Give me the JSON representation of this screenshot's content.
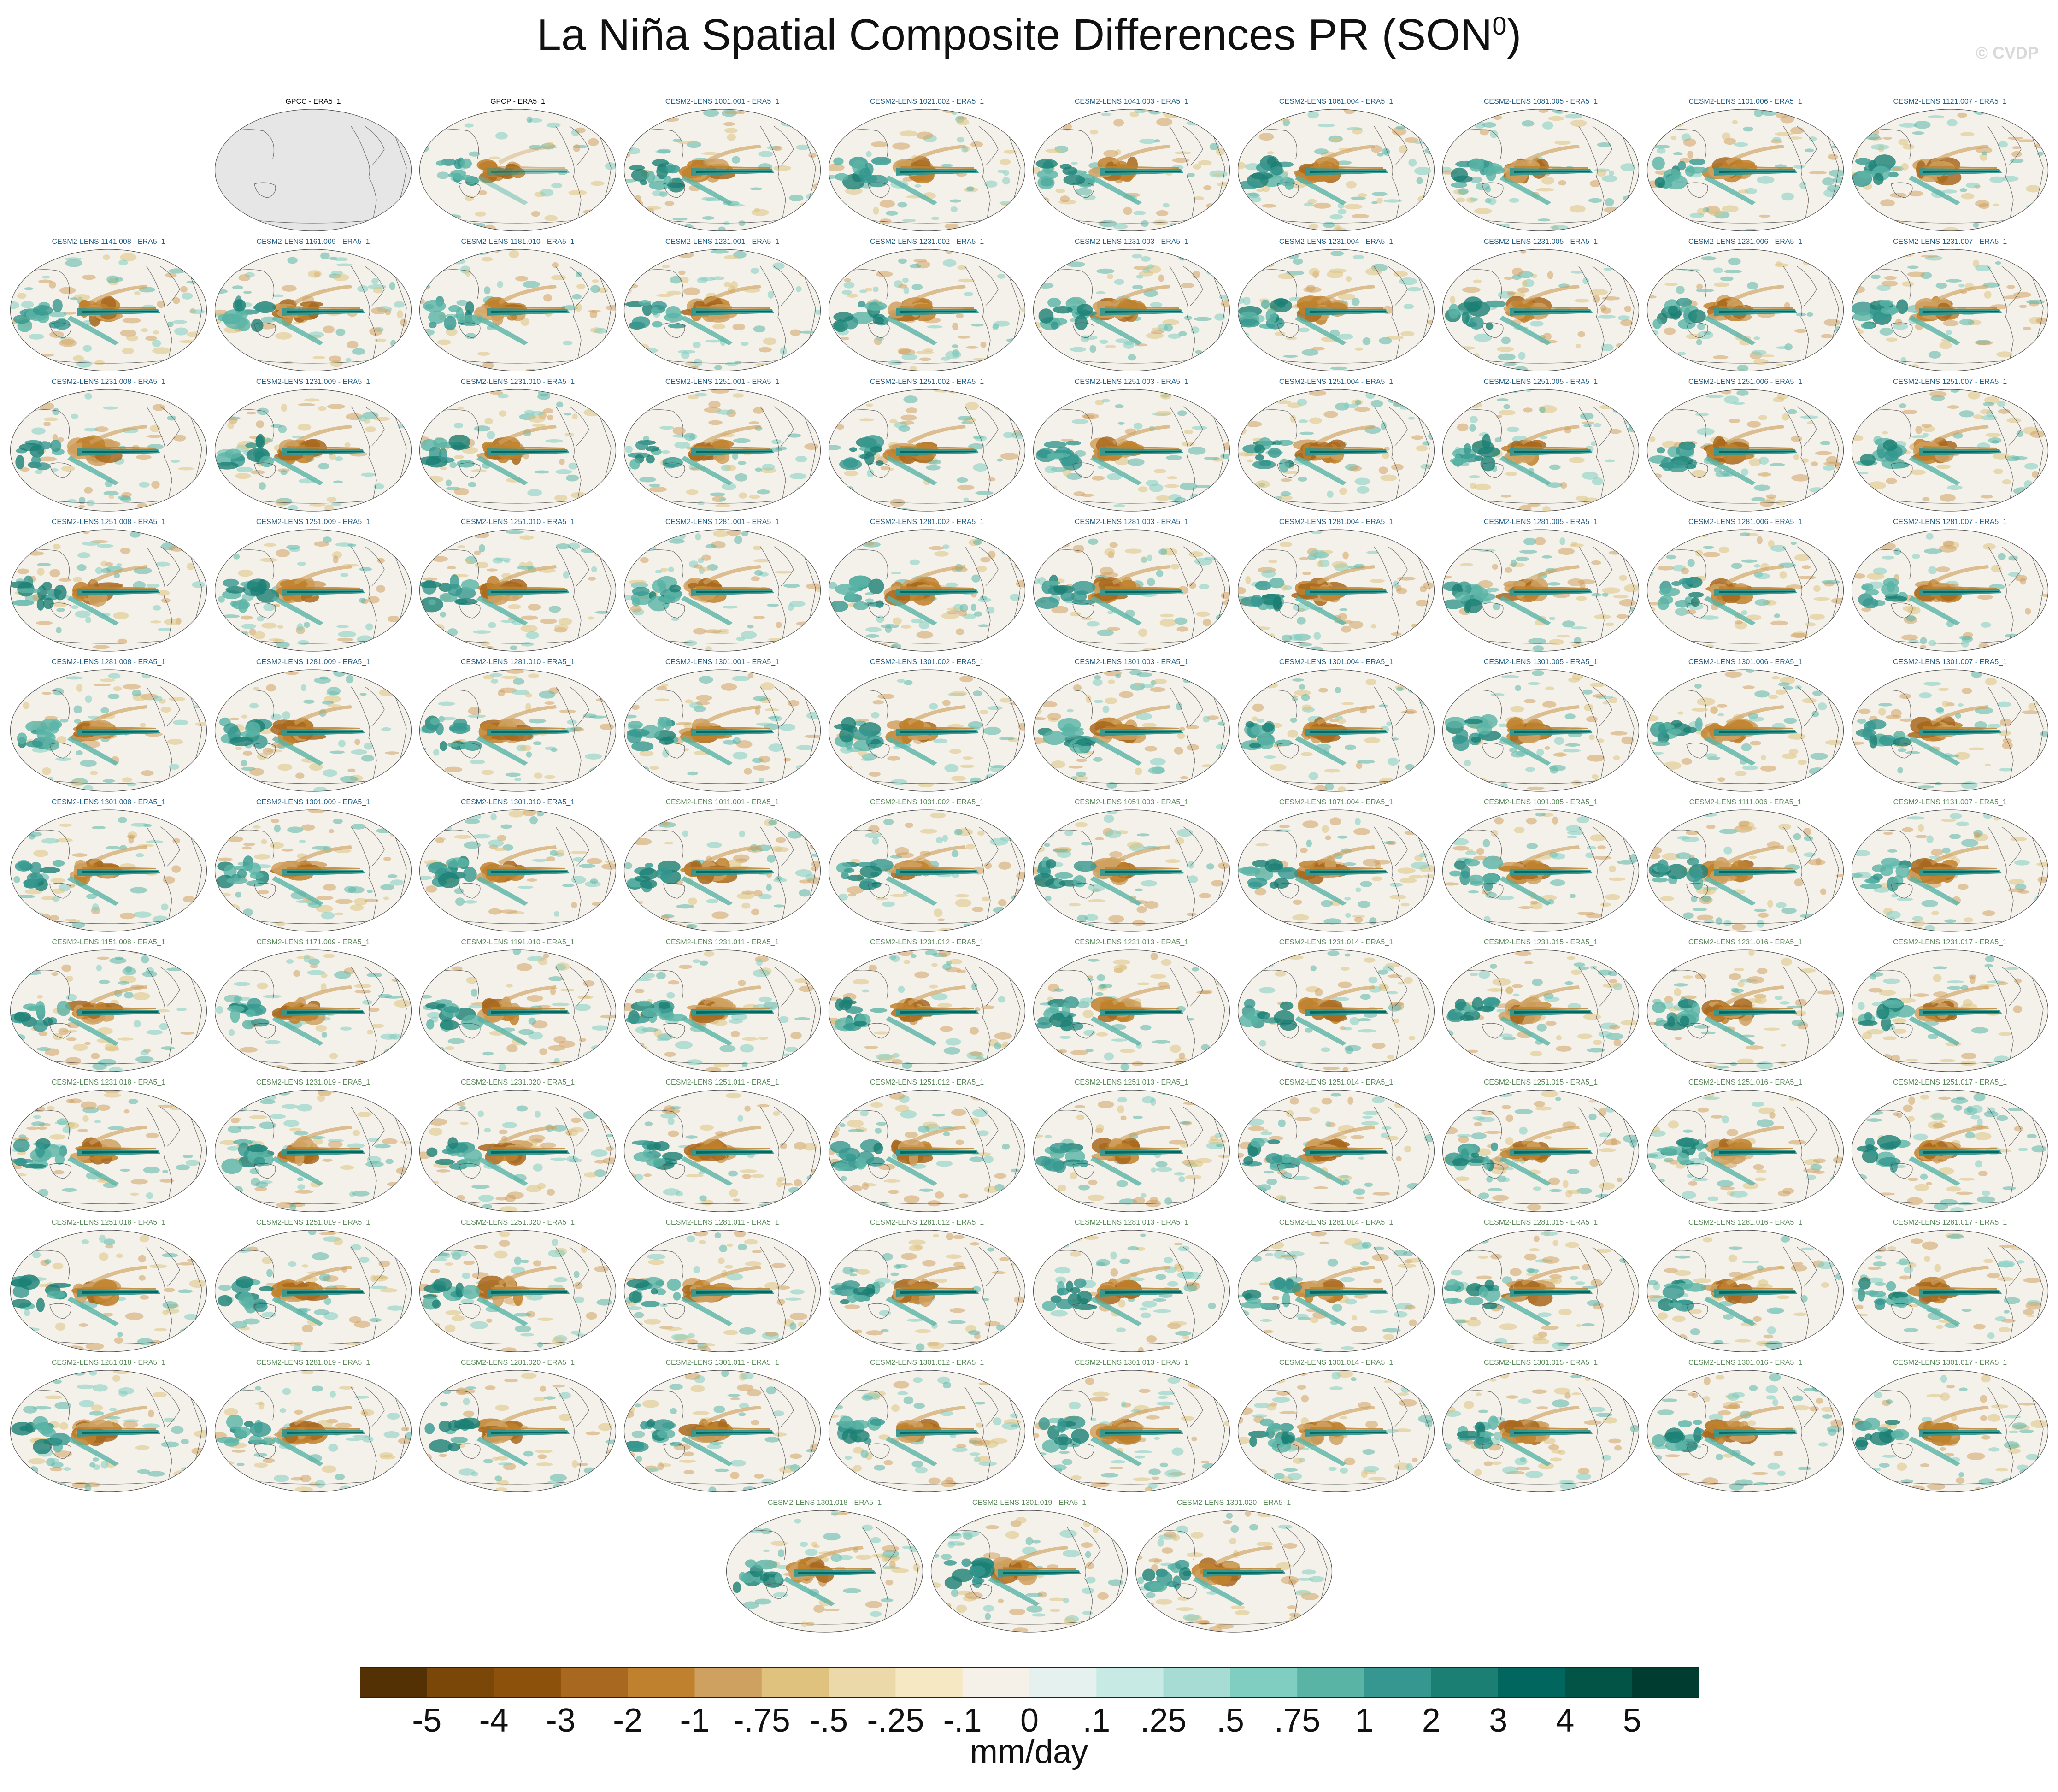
{
  "title": "La Niña Spatial Composite Differences PR (SON",
  "title_sup": "0",
  "title_close": ")",
  "watermark": "© CVDP",
  "units": "mm/day",
  "colors": {
    "title_obs": "#000000",
    "title_model_a": "#1f5f8b",
    "title_model_b": "#5a8a5a",
    "ocean_bg": "#f3f1ea",
    "land_mask": "#e6e6e6",
    "coast": "#555555"
  },
  "colorbar": {
    "labels": [
      "-5",
      "-4",
      "-3",
      "-2",
      "-1",
      "-.75",
      "-.5",
      "-.25",
      "-.1",
      "0",
      ".1",
      ".25",
      ".5",
      ".75",
      "1",
      "2",
      "3",
      "4",
      "5"
    ],
    "colors": [
      "#543005",
      "#7a4708",
      "#8c510a",
      "#a8681f",
      "#bf812d",
      "#cfa160",
      "#dfc27d",
      "#ecd9a9",
      "#f6e8c3",
      "#f5f1e8",
      "#e4f1ef",
      "#c7eae5",
      "#a6dcd3",
      "#80cdc1",
      "#5ab4a6",
      "#35978f",
      "#1c7f74",
      "#01665e",
      "#015446",
      "#003c30"
    ]
  },
  "panels": [
    {
      "label": "GPCC - ERA5_1",
      "kind": "obs-empty"
    },
    {
      "label": "GPCP - ERA5_1",
      "kind": "obs"
    },
    {
      "label": "CESM2-LENS 1001.001 - ERA5_1",
      "kind": "a"
    },
    {
      "label": "CESM2-LENS 1021.002 - ERA5_1",
      "kind": "a"
    },
    {
      "label": "CESM2-LENS 1041.003 - ERA5_1",
      "kind": "a"
    },
    {
      "label": "CESM2-LENS 1061.004 - ERA5_1",
      "kind": "a"
    },
    {
      "label": "CESM2-LENS 1081.005 - ERA5_1",
      "kind": "a"
    },
    {
      "label": "CESM2-LENS 1101.006 - ERA5_1",
      "kind": "a"
    },
    {
      "label": "CESM2-LENS 1121.007 - ERA5_1",
      "kind": "a"
    },
    {
      "label": "CESM2-LENS 1141.008 - ERA5_1",
      "kind": "a"
    },
    {
      "label": "CESM2-LENS 1161.009 - ERA5_1",
      "kind": "a"
    },
    {
      "label": "CESM2-LENS 1181.010 - ERA5_1",
      "kind": "a"
    },
    {
      "label": "CESM2-LENS 1231.001 - ERA5_1",
      "kind": "a"
    },
    {
      "label": "CESM2-LENS 1231.002 - ERA5_1",
      "kind": "a"
    },
    {
      "label": "CESM2-LENS 1231.003 - ERA5_1",
      "kind": "a"
    },
    {
      "label": "CESM2-LENS 1231.004 - ERA5_1",
      "kind": "a"
    },
    {
      "label": "CESM2-LENS 1231.005 - ERA5_1",
      "kind": "a"
    },
    {
      "label": "CESM2-LENS 1231.006 - ERA5_1",
      "kind": "a"
    },
    {
      "label": "CESM2-LENS 1231.007 - ERA5_1",
      "kind": "a"
    },
    {
      "label": "CESM2-LENS 1231.008 - ERA5_1",
      "kind": "a"
    },
    {
      "label": "CESM2-LENS 1231.009 - ERA5_1",
      "kind": "a"
    },
    {
      "label": "CESM2-LENS 1231.010 - ERA5_1",
      "kind": "a"
    },
    {
      "label": "CESM2-LENS 1251.001 - ERA5_1",
      "kind": "a"
    },
    {
      "label": "CESM2-LENS 1251.002 - ERA5_1",
      "kind": "a"
    },
    {
      "label": "CESM2-LENS 1251.003 - ERA5_1",
      "kind": "a"
    },
    {
      "label": "CESM2-LENS 1251.004 - ERA5_1",
      "kind": "a"
    },
    {
      "label": "CESM2-LENS 1251.005 - ERA5_1",
      "kind": "a"
    },
    {
      "label": "CESM2-LENS 1251.006 - ERA5_1",
      "kind": "a"
    },
    {
      "label": "CESM2-LENS 1251.007 - ERA5_1",
      "kind": "a"
    },
    {
      "label": "CESM2-LENS 1251.008 - ERA5_1",
      "kind": "a"
    },
    {
      "label": "CESM2-LENS 1251.009 - ERA5_1",
      "kind": "a"
    },
    {
      "label": "CESM2-LENS 1251.010 - ERA5_1",
      "kind": "a"
    },
    {
      "label": "CESM2-LENS 1281.001 - ERA5_1",
      "kind": "a"
    },
    {
      "label": "CESM2-LENS 1281.002 - ERA5_1",
      "kind": "a"
    },
    {
      "label": "CESM2-LENS 1281.003 - ERA5_1",
      "kind": "a"
    },
    {
      "label": "CESM2-LENS 1281.004 - ERA5_1",
      "kind": "a"
    },
    {
      "label": "CESM2-LENS 1281.005 - ERA5_1",
      "kind": "a"
    },
    {
      "label": "CESM2-LENS 1281.006 - ERA5_1",
      "kind": "a"
    },
    {
      "label": "CESM2-LENS 1281.007 - ERA5_1",
      "kind": "a"
    },
    {
      "label": "CESM2-LENS 1281.008 - ERA5_1",
      "kind": "a"
    },
    {
      "label": "CESM2-LENS 1281.009 - ERA5_1",
      "kind": "a"
    },
    {
      "label": "CESM2-LENS 1281.010 - ERA5_1",
      "kind": "a"
    },
    {
      "label": "CESM2-LENS 1301.001 - ERA5_1",
      "kind": "a"
    },
    {
      "label": "CESM2-LENS 1301.002 - ERA5_1",
      "kind": "a"
    },
    {
      "label": "CESM2-LENS 1301.003 - ERA5_1",
      "kind": "a"
    },
    {
      "label": "CESM2-LENS 1301.004 - ERA5_1",
      "kind": "a"
    },
    {
      "label": "CESM2-LENS 1301.005 - ERA5_1",
      "kind": "a"
    },
    {
      "label": "CESM2-LENS 1301.006 - ERA5_1",
      "kind": "a"
    },
    {
      "label": "CESM2-LENS 1301.007 - ERA5_1",
      "kind": "a"
    },
    {
      "label": "CESM2-LENS 1301.008 - ERA5_1",
      "kind": "a"
    },
    {
      "label": "CESM2-LENS 1301.009 - ERA5_1",
      "kind": "a"
    },
    {
      "label": "CESM2-LENS 1301.010 - ERA5_1",
      "kind": "a"
    },
    {
      "label": "CESM2-LENS 1011.001 - ERA5_1",
      "kind": "b"
    },
    {
      "label": "CESM2-LENS 1031.002 - ERA5_1",
      "kind": "b"
    },
    {
      "label": "CESM2-LENS 1051.003 - ERA5_1",
      "kind": "b"
    },
    {
      "label": "CESM2-LENS 1071.004 - ERA5_1",
      "kind": "b"
    },
    {
      "label": "CESM2-LENS 1091.005 - ERA5_1",
      "kind": "b"
    },
    {
      "label": "CESM2-LENS 1111.006 - ERA5_1",
      "kind": "b"
    },
    {
      "label": "CESM2-LENS 1131.007 - ERA5_1",
      "kind": "b"
    },
    {
      "label": "CESM2-LENS 1151.008 - ERA5_1",
      "kind": "b"
    },
    {
      "label": "CESM2-LENS 1171.009 - ERA5_1",
      "kind": "b"
    },
    {
      "label": "CESM2-LENS 1191.010 - ERA5_1",
      "kind": "b"
    },
    {
      "label": "CESM2-LENS 1231.011 - ERA5_1",
      "kind": "b"
    },
    {
      "label": "CESM2-LENS 1231.012 - ERA5_1",
      "kind": "b"
    },
    {
      "label": "CESM2-LENS 1231.013 - ERA5_1",
      "kind": "b"
    },
    {
      "label": "CESM2-LENS 1231.014 - ERA5_1",
      "kind": "b"
    },
    {
      "label": "CESM2-LENS 1231.015 - ERA5_1",
      "kind": "b"
    },
    {
      "label": "CESM2-LENS 1231.016 - ERA5_1",
      "kind": "b"
    },
    {
      "label": "CESM2-LENS 1231.017 - ERA5_1",
      "kind": "b"
    },
    {
      "label": "CESM2-LENS 1231.018 - ERA5_1",
      "kind": "b"
    },
    {
      "label": "CESM2-LENS 1231.019 - ERA5_1",
      "kind": "b"
    },
    {
      "label": "CESM2-LENS 1231.020 - ERA5_1",
      "kind": "b"
    },
    {
      "label": "CESM2-LENS 1251.011 - ERA5_1",
      "kind": "b"
    },
    {
      "label": "CESM2-LENS 1251.012 - ERA5_1",
      "kind": "b"
    },
    {
      "label": "CESM2-LENS 1251.013 - ERA5_1",
      "kind": "b"
    },
    {
      "label": "CESM2-LENS 1251.014 - ERA5_1",
      "kind": "b"
    },
    {
      "label": "CESM2-LENS 1251.015 - ERA5_1",
      "kind": "b"
    },
    {
      "label": "CESM2-LENS 1251.016 - ERA5_1",
      "kind": "b"
    },
    {
      "label": "CESM2-LENS 1251.017 - ERA5_1",
      "kind": "b"
    },
    {
      "label": "CESM2-LENS 1251.018 - ERA5_1",
      "kind": "b"
    },
    {
      "label": "CESM2-LENS 1251.019 - ERA5_1",
      "kind": "b"
    },
    {
      "label": "CESM2-LENS 1251.020 - ERA5_1",
      "kind": "b"
    },
    {
      "label": "CESM2-LENS 1281.011 - ERA5_1",
      "kind": "b"
    },
    {
      "label": "CESM2-LENS 1281.012 - ERA5_1",
      "kind": "b"
    },
    {
      "label": "CESM2-LENS 1281.013 - ERA5_1",
      "kind": "b"
    },
    {
      "label": "CESM2-LENS 1281.014 - ERA5_1",
      "kind": "b"
    },
    {
      "label": "CESM2-LENS 1281.015 - ERA5_1",
      "kind": "b"
    },
    {
      "label": "CESM2-LENS 1281.016 - ERA5_1",
      "kind": "b"
    },
    {
      "label": "CESM2-LENS 1281.017 - ERA5_1",
      "kind": "b"
    },
    {
      "label": "CESM2-LENS 1281.018 - ERA5_1",
      "kind": "b"
    },
    {
      "label": "CESM2-LENS 1281.019 - ERA5_1",
      "kind": "b"
    },
    {
      "label": "CESM2-LENS 1281.020 - ERA5_1",
      "kind": "b"
    },
    {
      "label": "CESM2-LENS 1301.011 - ERA5_1",
      "kind": "b"
    },
    {
      "label": "CESM2-LENS 1301.012 - ERA5_1",
      "kind": "b"
    },
    {
      "label": "CESM2-LENS 1301.013 - ERA5_1",
      "kind": "b"
    },
    {
      "label": "CESM2-LENS 1301.014 - ERA5_1",
      "kind": "b"
    },
    {
      "label": "CESM2-LENS 1301.015 - ERA5_1",
      "kind": "b"
    },
    {
      "label": "CESM2-LENS 1301.016 - ERA5_1",
      "kind": "b"
    },
    {
      "label": "CESM2-LENS 1301.017 - ERA5_1",
      "kind": "b"
    },
    {
      "label": "CESM2-LENS 1301.018 - ERA5_1",
      "kind": "b"
    },
    {
      "label": "CESM2-LENS 1301.019 - ERA5_1",
      "kind": "b"
    },
    {
      "label": "CESM2-LENS 1301.020 - ERA5_1",
      "kind": "b"
    }
  ]
}
